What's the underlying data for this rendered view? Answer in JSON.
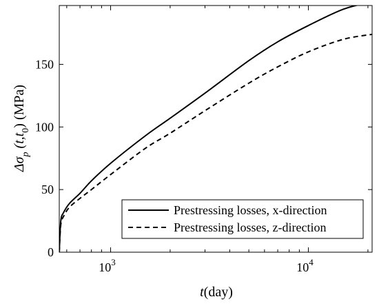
{
  "chart_data": {
    "type": "line",
    "title": "",
    "xlabel_var": "t",
    "xlabel_unit": "(day)",
    "ylabel_parts": {
      "delta_sigma": "Δσ",
      "sub_p": "p",
      "args": "(t,t",
      "sub_0": "0",
      "close": ")",
      "unit": " (MPa)"
    },
    "xscale": "log",
    "xlim": [
      550,
      21000
    ],
    "ylim": [
      0,
      197
    ],
    "grid": false,
    "legend_position": "lower-right",
    "x_ticks": [
      {
        "value": 1000,
        "base": "10",
        "exp": "3"
      },
      {
        "value": 10000,
        "base": "10",
        "exp": "4"
      }
    ],
    "y_ticks": [
      0,
      50,
      100,
      150
    ],
    "series": [
      {
        "name": "Prestressing losses, x-direction",
        "line_style": "solid",
        "color": "#000000",
        "x": [
          550,
          560,
          580,
          620,
          700,
          800,
          1000,
          1500,
          2000,
          3000,
          5000,
          7000,
          10000,
          15000,
          21000
        ],
        "y": [
          0,
          25,
          32,
          39,
          47,
          57,
          71,
          93,
          107,
          127,
          153,
          168,
          181,
          194,
          200
        ]
      },
      {
        "name": "Prestressing losses, z-direction",
        "line_style": "dashed",
        "color": "#000000",
        "x": [
          550,
          560,
          580,
          620,
          700,
          800,
          1000,
          1500,
          2000,
          3000,
          5000,
          7000,
          10000,
          15000,
          21000
        ],
        "y": [
          0,
          22,
          29,
          36,
          43,
          50,
          62,
          83,
          95,
          113,
          135,
          148,
          160,
          170,
          174
        ]
      }
    ]
  }
}
